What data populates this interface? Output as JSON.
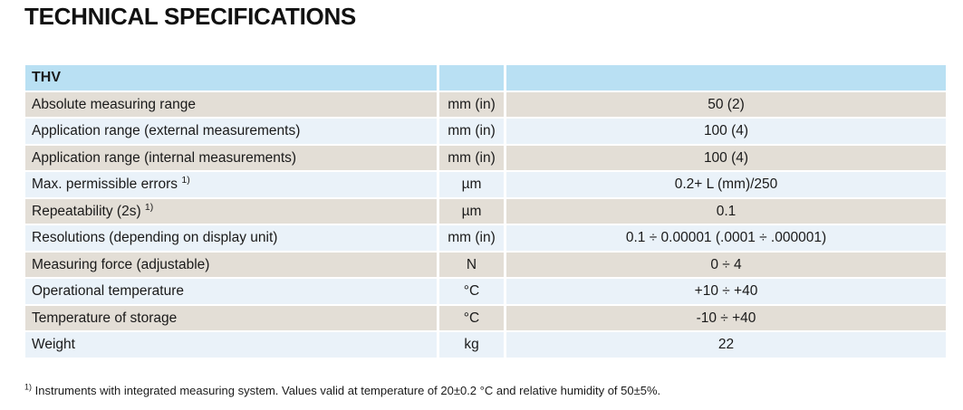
{
  "page": {
    "title": "TECHNICAL SPECIFICATIONS"
  },
  "table": {
    "header": {
      "model": "THV"
    },
    "rows": [
      {
        "label": "Absolute measuring range",
        "sup": "",
        "unit": "mm (in)",
        "value": "50 (2)"
      },
      {
        "label": "Application range (external measurements)",
        "sup": "",
        "unit": "mm (in)",
        "value": "100 (4)"
      },
      {
        "label": "Application range (internal measurements)",
        "sup": "",
        "unit": "mm (in)",
        "value": "100 (4)"
      },
      {
        "label": "Max. permissible errors ",
        "sup": "1)",
        "unit": "µm",
        "value": "0.2+ L (mm)/250"
      },
      {
        "label": "Repeatability (2s) ",
        "sup": "1)",
        "unit": "µm",
        "value": "0.1"
      },
      {
        "label": "Resolutions (depending on display unit)",
        "sup": "",
        "unit": "mm (in)",
        "value": "0.1 ÷ 0.00001 (.0001 ÷ .000001)"
      },
      {
        "label": "Measuring force (adjustable)",
        "sup": "",
        "unit": "N",
        "value": "0 ÷ 4"
      },
      {
        "label": "Operational temperature",
        "sup": "",
        "unit": "°C",
        "value": "+10 ÷ +40"
      },
      {
        "label": "Temperature of storage",
        "sup": "",
        "unit": "°C",
        "value": "-10 ÷ +40"
      },
      {
        "label": "Weight",
        "sup": "",
        "unit": "kg",
        "value": "22"
      }
    ]
  },
  "footnote": {
    "sup": "1)",
    "text": " Instruments with integrated measuring system. Values valid at temperature of 20±0.2 °C and relative humidity of 50±5%."
  },
  "colors": {
    "header_blue": "#b9e0f3",
    "row_beige": "#e3ded6",
    "row_blue": "#eaf2f9",
    "text": "#1a1a1a"
  }
}
